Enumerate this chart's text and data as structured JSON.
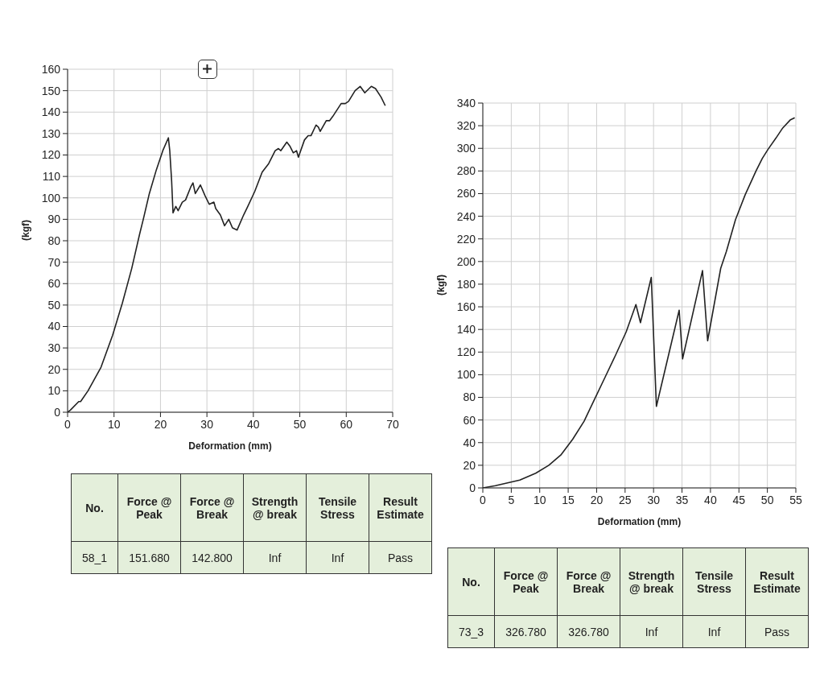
{
  "chart_data": [
    {
      "type": "line",
      "xlabel": "Deformation (mm)",
      "ylabel": "(kgf)",
      "x": [
        0,
        0.6,
        2.4,
        2.8,
        4.4,
        7.2,
        9.7,
        11.8,
        13.8,
        15.5,
        16.3,
        17.6,
        19.1,
        20.5,
        21.7,
        22.0,
        22.4,
        22.7,
        23.3,
        23.8,
        24.7,
        25.4,
        26.5,
        27.0,
        27.5,
        28.6,
        29.6,
        30.5,
        31.5,
        31.9,
        32.9,
        33.8,
        34.7,
        35.5,
        36.5,
        37.9,
        38.8,
        40.3,
        41.9,
        43.3,
        44.7,
        45.4,
        45.9,
        47.2,
        47.9,
        48.6,
        49.3,
        49.7,
        51.0,
        51.8,
        52.4,
        53.5,
        54.0,
        54.4,
        55.7,
        56.4,
        57.1,
        58.9,
        59.8,
        60.5,
        61.9,
        63.0,
        64.0,
        65.4,
        66.3,
        67.5,
        68.4
      ],
      "values": [
        0,
        1,
        5,
        5,
        10,
        21,
        36,
        51,
        67,
        83,
        90,
        102,
        113,
        122,
        128,
        122,
        108,
        93,
        96,
        94,
        98,
        99,
        105,
        107,
        102,
        106,
        101,
        97,
        98,
        95,
        92,
        87,
        90,
        86,
        85,
        92,
        96,
        103,
        112,
        116,
        122,
        123,
        122,
        126,
        124,
        121,
        122,
        119,
        127,
        129,
        129,
        134,
        133,
        131,
        136,
        136,
        138,
        144,
        144,
        145,
        150,
        152,
        149,
        152,
        151,
        147,
        143
      ],
      "color": "#222222",
      "xlim": [
        0,
        70
      ],
      "ylim": [
        0,
        160
      ],
      "xticks": [
        0,
        10,
        20,
        30,
        40,
        50,
        60,
        70
      ],
      "yticks": [
        0,
        10,
        20,
        30,
        40,
        50,
        60,
        70,
        80,
        90,
        100,
        110,
        120,
        130,
        140,
        150,
        160
      ],
      "grid": true
    },
    {
      "type": "other",
      "categories": [
        "No.",
        "Force @ Peak",
        "Force @ Break",
        "Strength @ break",
        "Tensile Stress",
        "Result Estimate"
      ],
      "annotations": [
        "58_1",
        "151.680",
        "142.800",
        "Inf",
        "Inf",
        "Pass"
      ]
    },
    {
      "type": "line",
      "xlabel": "Deformation (mm)",
      "ylabel": "(kgf)",
      "x": [
        0,
        2.2,
        6.5,
        9.3,
        11.6,
        13.7,
        15.8,
        17.8,
        19.6,
        21.5,
        23.3,
        25.2,
        26.9,
        27.7,
        29.6,
        30.5,
        34.5,
        35.1,
        38.6,
        39.5,
        41.8,
        42.8,
        44.4,
        46.1,
        48.0,
        49.1,
        50.1,
        51.5,
        52.7,
        54.0,
        54.8
      ],
      "values": [
        0,
        2,
        7,
        13,
        20,
        29,
        43,
        59,
        78,
        98,
        117,
        138,
        162,
        146,
        186,
        72,
        157,
        114,
        192,
        130,
        194,
        209,
        237,
        259,
        280,
        291,
        299,
        309,
        318,
        325,
        327
      ],
      "color": "#222222",
      "xlim": [
        0,
        55
      ],
      "ylim": [
        0,
        340
      ],
      "xticks": [
        0,
        5,
        10,
        15,
        20,
        25,
        30,
        35,
        40,
        45,
        50,
        55
      ],
      "yticks": [
        0,
        20,
        40,
        60,
        80,
        100,
        120,
        140,
        160,
        180,
        200,
        220,
        240,
        260,
        280,
        300,
        320,
        340
      ],
      "grid": true
    },
    {
      "type": "other",
      "categories": [
        "No.",
        "Force @ Peak",
        "Force @ Break",
        "Strength @ break",
        "Tensile Stress",
        "Result Estimate"
      ],
      "annotations": [
        "73_3",
        "326.780",
        "326.780",
        "Inf",
        "Inf",
        "Pass"
      ]
    }
  ]
}
